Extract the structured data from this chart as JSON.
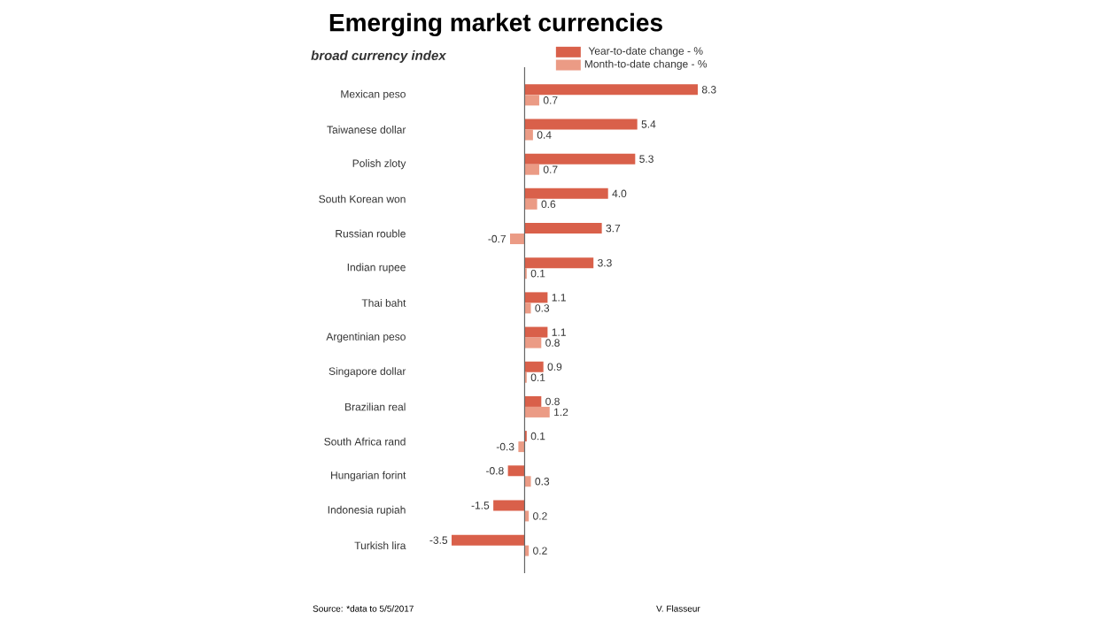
{
  "chart_data": {
    "type": "bar",
    "orientation": "horizontal",
    "title": "Emerging market currencies",
    "subtitle": "broad currency index",
    "categories": [
      "Mexican peso",
      "Taiwanese dollar",
      "Polish zloty",
      "South Korean won",
      "Russian rouble",
      "Indian rupee",
      "Thai baht",
      "Argentinian peso",
      "Singapore dollar",
      "Brazilian real",
      "South Africa rand",
      "Hungarian forint",
      "Indonesia rupiah",
      "Turkish lira"
    ],
    "series": [
      {
        "name": "Year-to-date change - %",
        "color": "#d9604a",
        "values": [
          8.3,
          5.4,
          5.3,
          4.0,
          3.7,
          3.3,
          1.1,
          1.1,
          0.9,
          0.8,
          0.1,
          -0.8,
          -1.5,
          -3.5
        ],
        "value_labels": [
          "8.3",
          "5.4",
          "5.3",
          "4.0",
          "3.7",
          "3.3",
          "1.1",
          "1.1",
          "0.9",
          "0.8",
          "0.1",
          "-0.8",
          "-1.5",
          "-3.5"
        ]
      },
      {
        "name": "Month-to-date change - %",
        "color": "#eb9b85",
        "values": [
          0.7,
          0.4,
          0.7,
          0.6,
          -0.7,
          0.1,
          0.3,
          0.8,
          0.1,
          1.2,
          -0.3,
          0.3,
          0.2,
          0.2
        ],
        "value_labels": [
          "0.7",
          "0.4",
          "0.7",
          "0.6",
          "-0.7",
          "0.1",
          "0.3",
          "0.8",
          "0.1",
          "1.2",
          "-0.3",
          "0.3",
          "0.2",
          "0.2"
        ]
      }
    ],
    "legend": "top right",
    "annotations": [
      "Source: *data to 5/5/2017",
      "V. Flasseur"
    ]
  }
}
